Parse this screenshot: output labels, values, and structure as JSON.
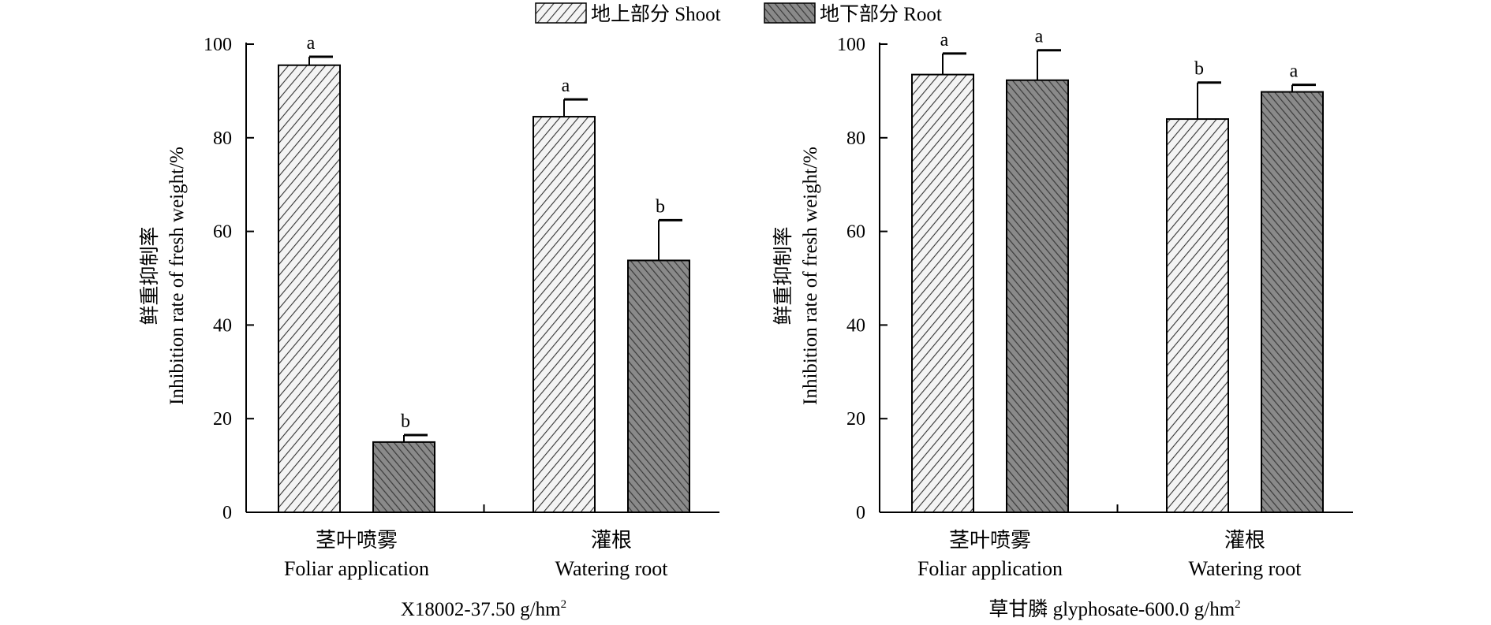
{
  "legend": {
    "position": "top-center",
    "entries": [
      {
        "label": "地上部分 Shoot",
        "pattern": "light-hatch"
      },
      {
        "label": "地下部分 Root",
        "pattern": "dark-hatch"
      }
    ]
  },
  "colors": {
    "shoot_fill": "#f4f4f4",
    "root_fill": "#808080",
    "hatch_light": "#333333",
    "hatch_dark": "#3a3a3a",
    "axis": "#000000"
  },
  "chart_data": [
    {
      "type": "bar",
      "grid": false,
      "ylim": [
        0,
        100
      ],
      "yticks": [
        "0",
        "20",
        "40",
        "60",
        "80",
        "100"
      ],
      "ylabel_cn": "鲜重抑制率",
      "ylabel_en": "Inhibition rate of fresh weight/%",
      "xtitle": "X18002-37.50 g/hm",
      "xtitle_sup": "2",
      "categories": [
        {
          "cn": "茎叶喷雾",
          "en": "Foliar application"
        },
        {
          "cn": "灌根",
          "en": "Watering root"
        }
      ],
      "series": [
        {
          "name": "地上部分 Shoot",
          "values": [
            95.5,
            84.5
          ],
          "errors": [
            1.8,
            3.7
          ],
          "letters": [
            "a",
            "a"
          ]
        },
        {
          "name": "地下部分 Root",
          "values": [
            15.0,
            53.8
          ],
          "errors": [
            1.5,
            8.6
          ],
          "letters": [
            "b",
            "b"
          ]
        }
      ]
    },
    {
      "type": "bar",
      "grid": false,
      "ylim": [
        0,
        100
      ],
      "yticks": [
        "0",
        "20",
        "40",
        "60",
        "80",
        "100"
      ],
      "ylabel_cn": "鲜重抑制率",
      "ylabel_en": "Inhibition rate of fresh weight/%",
      "xtitle": "草甘膦 glyphosate-600.0 g/hm",
      "xtitle_sup": "2",
      "categories": [
        {
          "cn": "茎叶喷雾",
          "en": "Foliar application"
        },
        {
          "cn": "灌根",
          "en": "Watering root"
        }
      ],
      "series": [
        {
          "name": "地上部分 Shoot",
          "values": [
            93.5,
            84.0
          ],
          "errors": [
            4.5,
            7.8
          ],
          "letters": [
            "a",
            "b"
          ]
        },
        {
          "name": "地下部分 Root",
          "values": [
            92.3,
            89.8
          ],
          "errors": [
            6.4,
            1.5
          ],
          "letters": [
            "a",
            "a"
          ]
        }
      ]
    }
  ]
}
